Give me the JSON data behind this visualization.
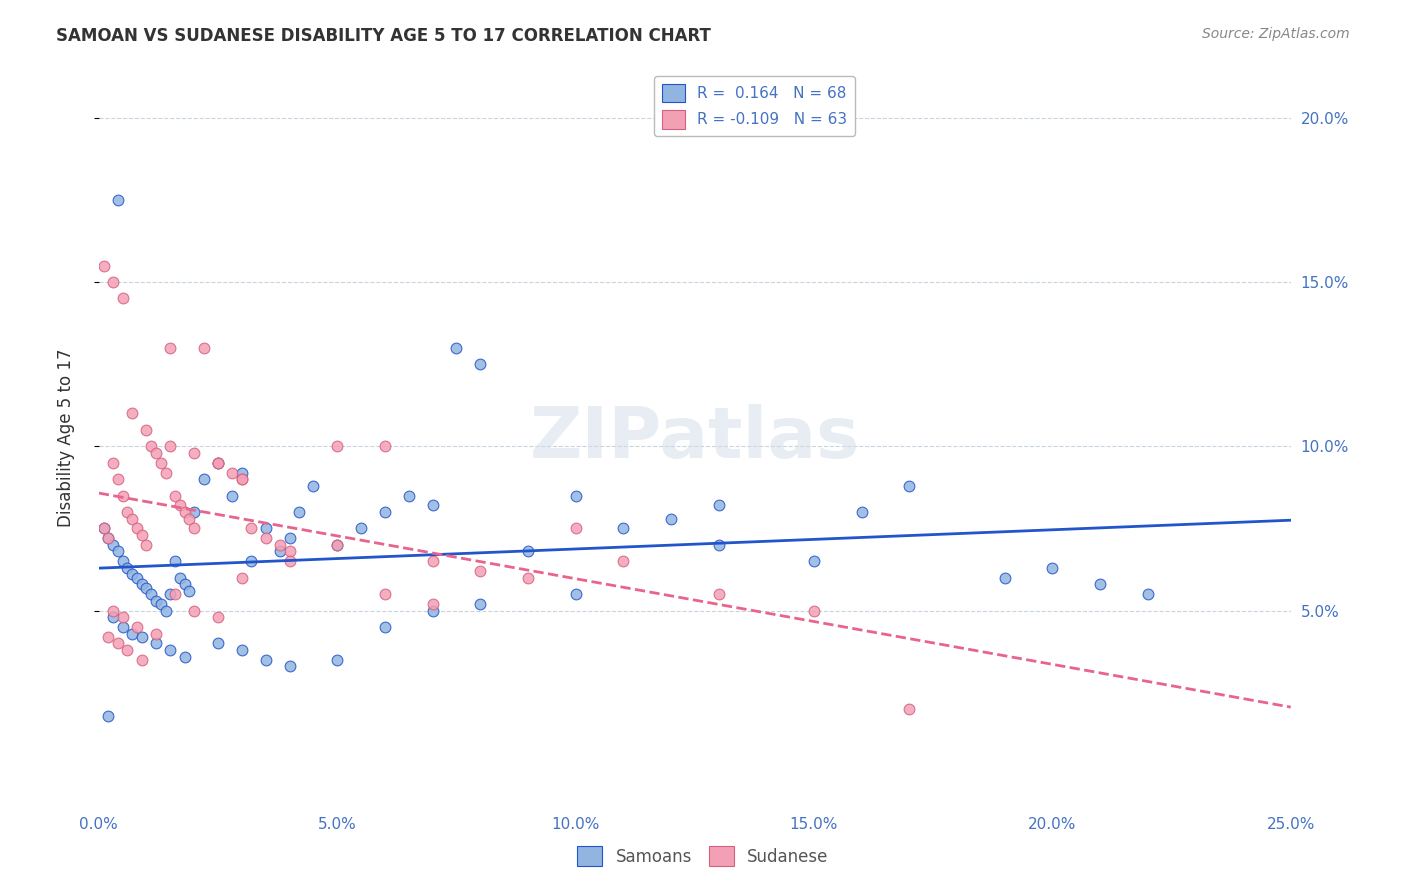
{
  "title": "SAMOAN VS SUDANESE DISABILITY AGE 5 TO 17 CORRELATION CHART",
  "source": "Source: ZipAtlas.com",
  "ylabel": "Disability Age 5 to 17",
  "xlim": [
    0.0,
    0.25
  ],
  "ylim": [
    -0.01,
    0.215
  ],
  "xticks": [
    0.0,
    0.05,
    0.1,
    0.15,
    0.2,
    0.25
  ],
  "yticks": [
    0.05,
    0.1,
    0.15,
    0.2
  ],
  "xticklabels": [
    "0.0%",
    "5.0%",
    "10.0%",
    "15.0%",
    "20.0%",
    "25.0%"
  ],
  "yticklabels_right": [
    "5.0%",
    "10.0%",
    "15.0%",
    "20.0%"
  ],
  "background_color": "#ffffff",
  "grid_color": "#c8d4e0",
  "tick_color": "#4472c4",
  "samoan_color": "#92b4e0",
  "sudanese_color": "#f4a0b4",
  "samoan_line_color": "#2255cc",
  "sudanese_line_color": "#e8648c",
  "legend_samoan_label": "R =  0.164   N = 68",
  "legend_sudanese_label": "R = -0.109   N = 63",
  "watermark": "ZIPatlas",
  "legend_bottom_samoan": "Samoans",
  "legend_bottom_sudanese": "Sudanese",
  "samoan_scatter_x": [
    0.001,
    0.002,
    0.003,
    0.004,
    0.005,
    0.006,
    0.007,
    0.008,
    0.009,
    0.01,
    0.011,
    0.012,
    0.013,
    0.014,
    0.015,
    0.016,
    0.017,
    0.018,
    0.019,
    0.02,
    0.022,
    0.025,
    0.028,
    0.03,
    0.032,
    0.035,
    0.038,
    0.04,
    0.042,
    0.045,
    0.05,
    0.055,
    0.06,
    0.065,
    0.07,
    0.075,
    0.08,
    0.09,
    0.1,
    0.11,
    0.12,
    0.13,
    0.15,
    0.17,
    0.19,
    0.2,
    0.21,
    0.22,
    0.003,
    0.005,
    0.007,
    0.009,
    0.012,
    0.015,
    0.018,
    0.025,
    0.03,
    0.035,
    0.04,
    0.05,
    0.06,
    0.07,
    0.08,
    0.1,
    0.13,
    0.16,
    0.002,
    0.004
  ],
  "samoan_scatter_y": [
    0.075,
    0.072,
    0.07,
    0.068,
    0.065,
    0.063,
    0.061,
    0.06,
    0.058,
    0.057,
    0.055,
    0.053,
    0.052,
    0.05,
    0.055,
    0.065,
    0.06,
    0.058,
    0.056,
    0.08,
    0.09,
    0.095,
    0.085,
    0.092,
    0.065,
    0.075,
    0.068,
    0.072,
    0.08,
    0.088,
    0.07,
    0.075,
    0.08,
    0.085,
    0.082,
    0.13,
    0.125,
    0.068,
    0.085,
    0.075,
    0.078,
    0.07,
    0.065,
    0.088,
    0.06,
    0.063,
    0.058,
    0.055,
    0.048,
    0.045,
    0.043,
    0.042,
    0.04,
    0.038,
    0.036,
    0.04,
    0.038,
    0.035,
    0.033,
    0.035,
    0.045,
    0.05,
    0.052,
    0.055,
    0.082,
    0.08,
    0.018,
    0.175
  ],
  "sudanese_scatter_x": [
    0.001,
    0.002,
    0.003,
    0.004,
    0.005,
    0.006,
    0.007,
    0.008,
    0.009,
    0.01,
    0.011,
    0.012,
    0.013,
    0.014,
    0.015,
    0.016,
    0.017,
    0.018,
    0.019,
    0.02,
    0.022,
    0.025,
    0.028,
    0.03,
    0.032,
    0.035,
    0.038,
    0.04,
    0.05,
    0.06,
    0.07,
    0.08,
    0.09,
    0.1,
    0.11,
    0.13,
    0.003,
    0.005,
    0.008,
    0.012,
    0.016,
    0.02,
    0.025,
    0.03,
    0.04,
    0.05,
    0.06,
    0.07,
    0.002,
    0.004,
    0.006,
    0.009,
    0.15,
    0.17,
    0.001,
    0.003,
    0.005,
    0.007,
    0.01,
    0.015,
    0.02,
    0.025,
    0.03
  ],
  "sudanese_scatter_y": [
    0.075,
    0.072,
    0.095,
    0.09,
    0.085,
    0.08,
    0.078,
    0.075,
    0.073,
    0.07,
    0.1,
    0.098,
    0.095,
    0.092,
    0.13,
    0.085,
    0.082,
    0.08,
    0.078,
    0.075,
    0.13,
    0.095,
    0.092,
    0.09,
    0.075,
    0.072,
    0.07,
    0.068,
    0.1,
    0.1,
    0.065,
    0.062,
    0.06,
    0.075,
    0.065,
    0.055,
    0.05,
    0.048,
    0.045,
    0.043,
    0.055,
    0.05,
    0.048,
    0.06,
    0.065,
    0.07,
    0.055,
    0.052,
    0.042,
    0.04,
    0.038,
    0.035,
    0.05,
    0.02,
    0.155,
    0.15,
    0.145,
    0.11,
    0.105,
    0.1,
    0.098,
    0.095,
    0.09
  ]
}
